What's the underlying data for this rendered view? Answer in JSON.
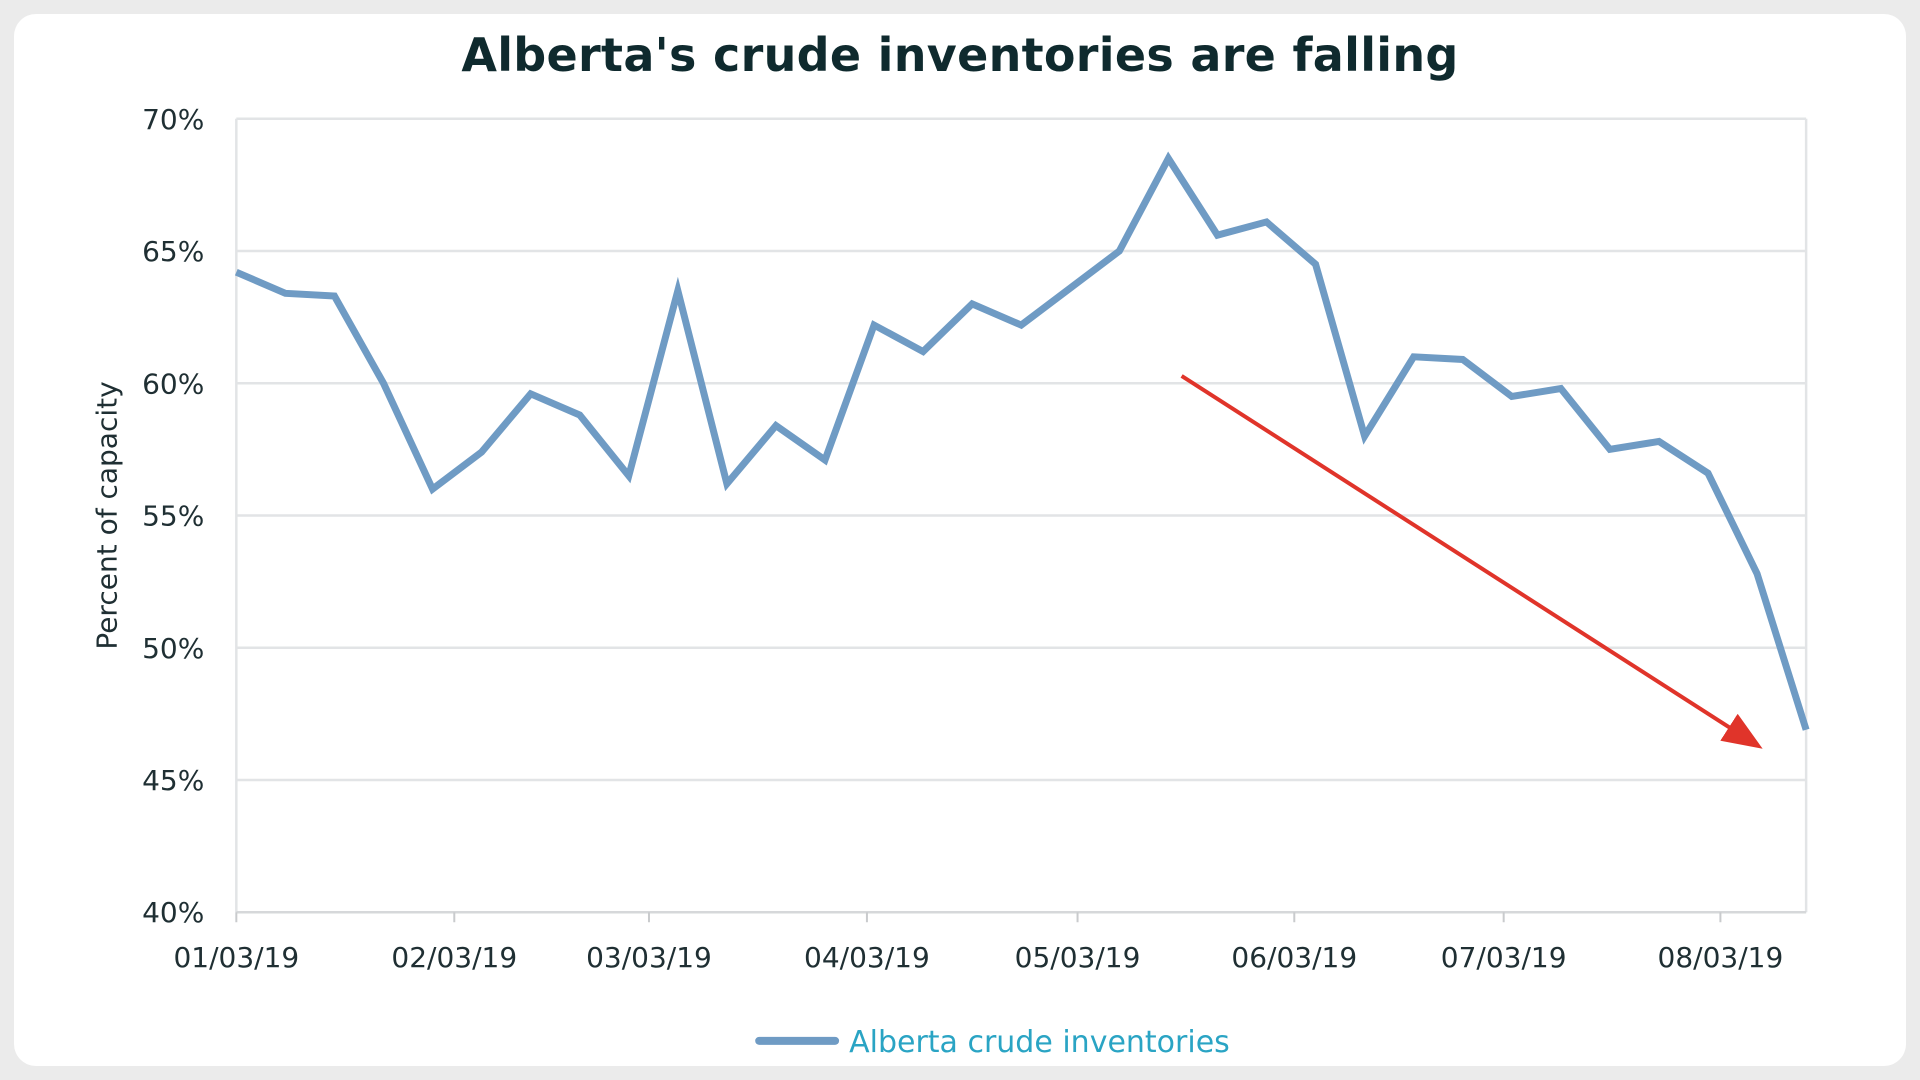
{
  "chart_data": {
    "type": "line",
    "title": "Alberta's crude inventories are falling",
    "ylabel": "Percent of capacity",
    "xlabel": "",
    "ylim": [
      40,
      70
    ],
    "y_ticks": [
      "40%",
      "45%",
      "50%",
      "55%",
      "60%",
      "65%",
      "70%"
    ],
    "y_tick_values": [
      40,
      45,
      50,
      55,
      60,
      65,
      70
    ],
    "x_ticks": [
      "01/03/19",
      "02/03/19",
      "03/03/19",
      "04/03/19",
      "05/03/19",
      "06/03/19",
      "07/03/19",
      "08/03/19"
    ],
    "grid": true,
    "legend_position": "bottom",
    "series": [
      {
        "name": "Alberta crude inventories",
        "color": "#6f9bc4",
        "values": [
          64.2,
          63.4,
          63.3,
          60.0,
          56.0,
          57.4,
          59.6,
          58.8,
          56.5,
          63.5,
          56.2,
          58.4,
          57.1,
          62.2,
          61.2,
          63.0,
          62.2,
          63.6,
          65.0,
          68.5,
          65.6,
          66.1,
          64.5,
          58.0,
          61.0,
          60.9,
          59.5,
          59.8,
          57.5,
          57.8,
          56.6,
          52.8,
          46.9
        ]
      }
    ],
    "annotations": [
      {
        "type": "arrow",
        "color": "#e0342a",
        "description": "downward trend arrow"
      }
    ]
  }
}
